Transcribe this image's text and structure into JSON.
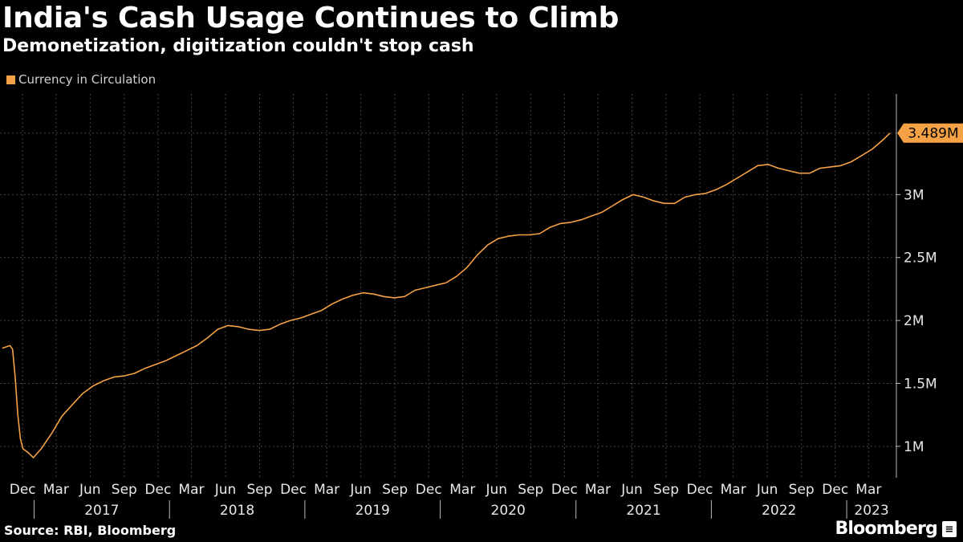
{
  "header": {
    "title": "India's Cash Usage Continues to Climb",
    "subtitle": "Demonetization, digitization couldn't stop cash"
  },
  "footer": {
    "source": "Source: RBI, Bloomberg",
    "brand": "Bloomberg"
  },
  "colors": {
    "background": "#000000",
    "series": "#f5a145",
    "grid": "#444444",
    "text": "#ffffff"
  },
  "chart_data": {
    "type": "line",
    "title": "India's Cash Usage Continues to Climb",
    "subtitle": "Demonetization, digitization couldn't stop cash",
    "xlabel": "",
    "ylabel": "",
    "legend_position": "top-left",
    "grid": true,
    "x_range": [
      "2016-10-01",
      "2023-05-15"
    ],
    "ylim": [
      0.75,
      3.8
    ],
    "y_unit": "M",
    "y_ticks": [
      {
        "value": 1.0,
        "label": "1M"
      },
      {
        "value": 1.5,
        "label": "1.5M"
      },
      {
        "value": 2.0,
        "label": "2M"
      },
      {
        "value": 2.5,
        "label": "2.5M"
      },
      {
        "value": 3.0,
        "label": "3M"
      }
    ],
    "x_month_ticks": [
      {
        "date": "2016-12-01",
        "label": "Dec"
      },
      {
        "date": "2017-03-01",
        "label": "Mar"
      },
      {
        "date": "2017-06-01",
        "label": "Jun"
      },
      {
        "date": "2017-09-01",
        "label": "Sep"
      },
      {
        "date": "2017-12-01",
        "label": "Dec"
      },
      {
        "date": "2018-03-01",
        "label": "Mar"
      },
      {
        "date": "2018-06-01",
        "label": "Jun"
      },
      {
        "date": "2018-09-01",
        "label": "Sep"
      },
      {
        "date": "2018-12-01",
        "label": "Dec"
      },
      {
        "date": "2019-03-01",
        "label": "Mar"
      },
      {
        "date": "2019-06-01",
        "label": "Jun"
      },
      {
        "date": "2019-09-01",
        "label": "Sep"
      },
      {
        "date": "2019-12-01",
        "label": "Dec"
      },
      {
        "date": "2020-03-01",
        "label": "Mar"
      },
      {
        "date": "2020-06-01",
        "label": "Jun"
      },
      {
        "date": "2020-09-01",
        "label": "Sep"
      },
      {
        "date": "2020-12-01",
        "label": "Dec"
      },
      {
        "date": "2021-03-01",
        "label": "Mar"
      },
      {
        "date": "2021-06-01",
        "label": "Jun"
      },
      {
        "date": "2021-09-01",
        "label": "Sep"
      },
      {
        "date": "2021-12-01",
        "label": "Dec"
      },
      {
        "date": "2022-03-01",
        "label": "Mar"
      },
      {
        "date": "2022-06-01",
        "label": "Jun"
      },
      {
        "date": "2022-09-01",
        "label": "Sep"
      },
      {
        "date": "2022-12-01",
        "label": "Dec"
      },
      {
        "date": "2023-03-01",
        "label": "Mar"
      }
    ],
    "x_year_labels": [
      {
        "label": "2017",
        "from": "2017-01-01",
        "to": "2018-01-01"
      },
      {
        "label": "2018",
        "from": "2018-01-01",
        "to": "2019-01-01"
      },
      {
        "label": "2019",
        "from": "2019-01-01",
        "to": "2020-01-01"
      },
      {
        "label": "2020",
        "from": "2020-01-01",
        "to": "2021-01-01"
      },
      {
        "label": "2021",
        "from": "2021-01-01",
        "to": "2022-01-01"
      },
      {
        "label": "2022",
        "from": "2022-01-01",
        "to": "2023-01-01"
      },
      {
        "label": "2023",
        "from": "2023-01-01",
        "to": "2023-05-15"
      }
    ],
    "last_value_label": "3.489M",
    "series": [
      {
        "name": "Currency in Circulation",
        "color": "#f5a145",
        "points": [
          {
            "x": "2016-10-07",
            "y": 1.78
          },
          {
            "x": "2016-10-28",
            "y": 1.8
          },
          {
            "x": "2016-11-04",
            "y": 1.77
          },
          {
            "x": "2016-11-11",
            "y": 1.55
          },
          {
            "x": "2016-11-18",
            "y": 1.25
          },
          {
            "x": "2016-11-25",
            "y": 1.06
          },
          {
            "x": "2016-12-02",
            "y": 0.98
          },
          {
            "x": "2016-12-16",
            "y": 0.95
          },
          {
            "x": "2016-12-30",
            "y": 0.91
          },
          {
            "x": "2017-01-20",
            "y": 0.98
          },
          {
            "x": "2017-02-17",
            "y": 1.1
          },
          {
            "x": "2017-03-17",
            "y": 1.24
          },
          {
            "x": "2017-04-14",
            "y": 1.33
          },
          {
            "x": "2017-05-12",
            "y": 1.42
          },
          {
            "x": "2017-06-09",
            "y": 1.48
          },
          {
            "x": "2017-07-07",
            "y": 1.52
          },
          {
            "x": "2017-08-04",
            "y": 1.55
          },
          {
            "x": "2017-09-01",
            "y": 1.56
          },
          {
            "x": "2017-09-29",
            "y": 1.58
          },
          {
            "x": "2017-10-27",
            "y": 1.62
          },
          {
            "x": "2017-11-24",
            "y": 1.65
          },
          {
            "x": "2017-12-22",
            "y": 1.68
          },
          {
            "x": "2018-01-19",
            "y": 1.72
          },
          {
            "x": "2018-02-16",
            "y": 1.76
          },
          {
            "x": "2018-03-16",
            "y": 1.8
          },
          {
            "x": "2018-04-13",
            "y": 1.86
          },
          {
            "x": "2018-05-11",
            "y": 1.93
          },
          {
            "x": "2018-06-08",
            "y": 1.96
          },
          {
            "x": "2018-07-06",
            "y": 1.95
          },
          {
            "x": "2018-08-03",
            "y": 1.93
          },
          {
            "x": "2018-08-31",
            "y": 1.92
          },
          {
            "x": "2018-09-28",
            "y": 1.93
          },
          {
            "x": "2018-10-26",
            "y": 1.97
          },
          {
            "x": "2018-11-23",
            "y": 2.0
          },
          {
            "x": "2018-12-21",
            "y": 2.02
          },
          {
            "x": "2019-01-18",
            "y": 2.05
          },
          {
            "x": "2019-02-15",
            "y": 2.08
          },
          {
            "x": "2019-03-15",
            "y": 2.13
          },
          {
            "x": "2019-04-12",
            "y": 2.17
          },
          {
            "x": "2019-05-10",
            "y": 2.2
          },
          {
            "x": "2019-06-07",
            "y": 2.22
          },
          {
            "x": "2019-07-05",
            "y": 2.21
          },
          {
            "x": "2019-08-02",
            "y": 2.19
          },
          {
            "x": "2019-08-30",
            "y": 2.18
          },
          {
            "x": "2019-09-27",
            "y": 2.19
          },
          {
            "x": "2019-10-25",
            "y": 2.24
          },
          {
            "x": "2019-11-22",
            "y": 2.26
          },
          {
            "x": "2019-12-20",
            "y": 2.28
          },
          {
            "x": "2020-01-17",
            "y": 2.3
          },
          {
            "x": "2020-02-14",
            "y": 2.35
          },
          {
            "x": "2020-03-13",
            "y": 2.42
          },
          {
            "x": "2020-04-10",
            "y": 2.52
          },
          {
            "x": "2020-05-08",
            "y": 2.6
          },
          {
            "x": "2020-06-05",
            "y": 2.65
          },
          {
            "x": "2020-07-03",
            "y": 2.67
          },
          {
            "x": "2020-07-31",
            "y": 2.68
          },
          {
            "x": "2020-08-28",
            "y": 2.68
          },
          {
            "x": "2020-09-25",
            "y": 2.69
          },
          {
            "x": "2020-10-23",
            "y": 2.74
          },
          {
            "x": "2020-11-20",
            "y": 2.77
          },
          {
            "x": "2020-12-18",
            "y": 2.78
          },
          {
            "x": "2021-01-15",
            "y": 2.8
          },
          {
            "x": "2021-02-12",
            "y": 2.83
          },
          {
            "x": "2021-03-12",
            "y": 2.86
          },
          {
            "x": "2021-04-09",
            "y": 2.91
          },
          {
            "x": "2021-05-07",
            "y": 2.96
          },
          {
            "x": "2021-06-04",
            "y": 3.0
          },
          {
            "x": "2021-07-02",
            "y": 2.98
          },
          {
            "x": "2021-07-30",
            "y": 2.95
          },
          {
            "x": "2021-08-27",
            "y": 2.93
          },
          {
            "x": "2021-09-24",
            "y": 2.93
          },
          {
            "x": "2021-10-22",
            "y": 2.98
          },
          {
            "x": "2021-11-19",
            "y": 3.0
          },
          {
            "x": "2021-12-17",
            "y": 3.01
          },
          {
            "x": "2022-01-14",
            "y": 3.04
          },
          {
            "x": "2022-02-11",
            "y": 3.08
          },
          {
            "x": "2022-03-11",
            "y": 3.13
          },
          {
            "x": "2022-04-08",
            "y": 3.18
          },
          {
            "x": "2022-05-06",
            "y": 3.23
          },
          {
            "x": "2022-06-03",
            "y": 3.24
          },
          {
            "x": "2022-07-01",
            "y": 3.21
          },
          {
            "x": "2022-07-29",
            "y": 3.19
          },
          {
            "x": "2022-08-26",
            "y": 3.17
          },
          {
            "x": "2022-09-23",
            "y": 3.17
          },
          {
            "x": "2022-10-21",
            "y": 3.21
          },
          {
            "x": "2022-11-18",
            "y": 3.22
          },
          {
            "x": "2022-12-16",
            "y": 3.23
          },
          {
            "x": "2023-01-13",
            "y": 3.26
          },
          {
            "x": "2023-02-10",
            "y": 3.31
          },
          {
            "x": "2023-03-10",
            "y": 3.36
          },
          {
            "x": "2023-04-07",
            "y": 3.43
          },
          {
            "x": "2023-04-28",
            "y": 3.489
          }
        ]
      }
    ]
  }
}
